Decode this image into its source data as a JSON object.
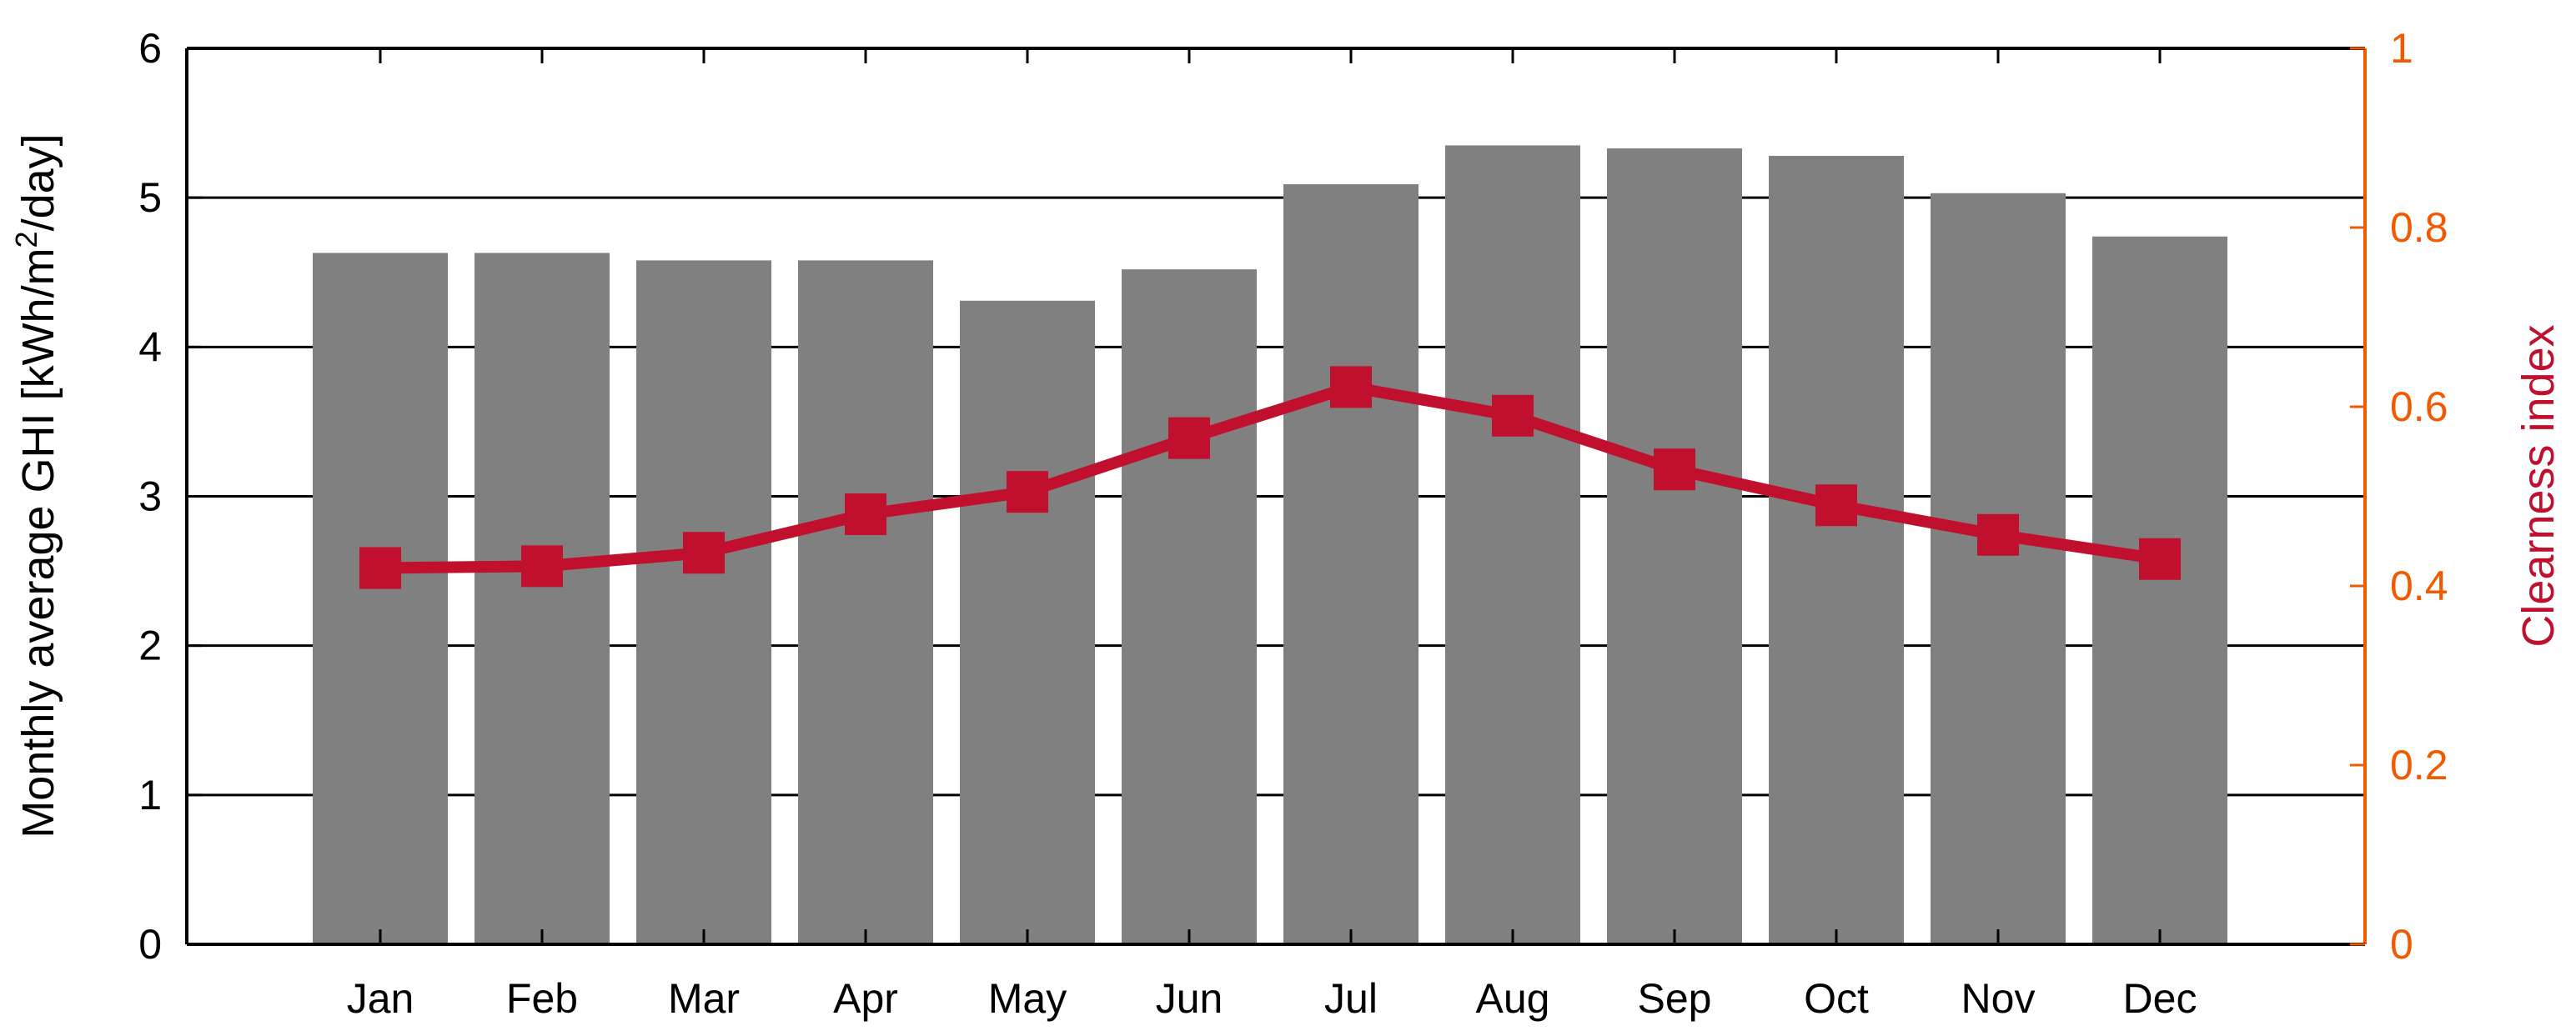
{
  "chart_data": {
    "type": "bar",
    "categories": [
      "Jan",
      "Feb",
      "Mar",
      "Apr",
      "May",
      "Jun",
      "Jul",
      "Aug",
      "Sep",
      "Oct",
      "Nov",
      "Dec"
    ],
    "series": [
      {
        "type": "bar",
        "axis": "left",
        "values": [
          4.63,
          4.63,
          4.58,
          4.58,
          4.31,
          4.52,
          5.09,
          5.35,
          5.33,
          5.28,
          5.03,
          4.74
        ],
        "color": "#808080"
      },
      {
        "type": "line",
        "axis": "right",
        "marker": "square",
        "values": [
          0.42,
          0.422,
          0.437,
          0.48,
          0.505,
          0.565,
          0.622,
          0.59,
          0.53,
          0.49,
          0.457,
          0.43
        ],
        "color": "#c0102e"
      }
    ],
    "ylabel": "Monthly average GHI [kWh/m²/day]",
    "ylabel_parts": {
      "prefix": "Monthly average GHI [kWh/m",
      "superscript": "2",
      "suffix": "/day]"
    },
    "y2label": "Clearness index",
    "ylim": [
      0,
      6
    ],
    "y2lim": [
      0,
      1
    ],
    "yticks": [
      "0",
      "1",
      "2",
      "3",
      "4",
      "5",
      "6"
    ],
    "y2ticks": [
      "0",
      "0.2",
      "0.4",
      "0.6",
      "0.8",
      "1"
    ],
    "grid": "horizontal",
    "colors": {
      "bar": "#808080",
      "line": "#c0102e",
      "right_axis": "#f05a00",
      "right_label": "#c0102e",
      "axis": "#000000"
    }
  }
}
